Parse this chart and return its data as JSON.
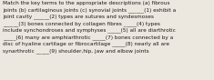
{
  "text": "Match the key terms to the appropriate descriptions (a) fibrous\njoints (b) cartilaginous joints (c) synovial joints ______(1) exhibit a\njoint cavity ______(2) types are sutures and syndesmoses\n______(3) bones connected by collagen fibres _____(4) types\ninclude synchondroses and symphyses _____(5) all are diarthrotic\n_____(6) many are amphiarthrotic _____(7) bones connected by a\ndisc of hyaline cartilage or fibrocartilage _____(8) nearly all are\nsynarthrotic _____(9) shoulder,hip, jaw and elbow joints",
  "fontsize": 4.15,
  "background_color": "#ede8df",
  "text_color": "#1a1a1a",
  "font_family": "DejaVu Sans",
  "linespacing": 1.45
}
